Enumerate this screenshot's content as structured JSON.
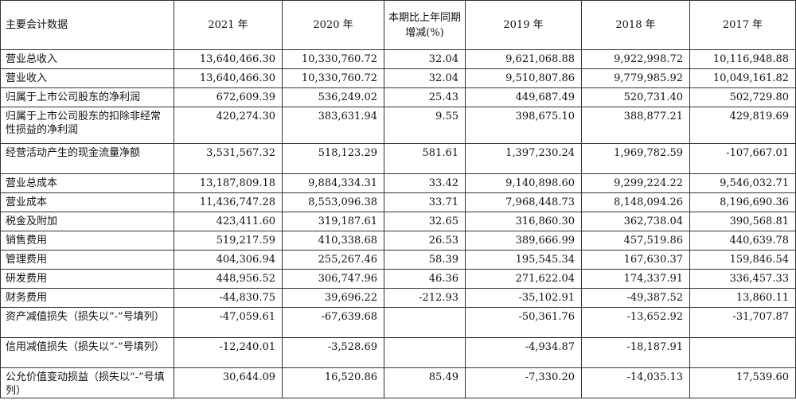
{
  "table": {
    "headers": [
      "主要会计数据",
      "2021 年",
      "2020 年",
      "本期比上年同期增减(%)",
      "2019 年",
      "2018 年",
      "2017 年"
    ],
    "rows": [
      {
        "label": "营业总收入",
        "values": [
          "13,640,466.30",
          "10,330,760.72",
          "32.04",
          "9,621,068.88",
          "9,922,998.72",
          "10,116,948.88"
        ]
      },
      {
        "label": "营业收入",
        "values": [
          "13,640,466.30",
          "10,330,760.72",
          "32.04",
          "9,510,807.86",
          "9,779,985.92",
          "10,049,161.82"
        ]
      },
      {
        "label": "归属于上市公司股东的净利润",
        "values": [
          "672,609.39",
          "536,249.02",
          "25.43",
          "449,687.49",
          "520,731.40",
          "502,729.80"
        ]
      },
      {
        "label": "归属于上市公司股东的扣除非经常性损益的净利润",
        "values": [
          "420,274.30",
          "383,631.94",
          "9.55",
          "398,675.10",
          "388,877.21",
          "429,819.69"
        ]
      },
      {
        "label": "经营活动产生的现金流量净额",
        "values": [
          "3,531,567.32",
          "518,123.29",
          "581.61",
          "1,397,230.24",
          "1,969,782.59",
          "-107,667.01"
        ]
      },
      {
        "label": "营业总成本",
        "values": [
          "13,187,809.18",
          "9,884,334.31",
          "33.42",
          "9,140,898.60",
          "9,299,224.22",
          "9,546,032.71"
        ]
      },
      {
        "label": "营业成本",
        "values": [
          "11,436,747.28",
          "8,553,096.38",
          "33.71",
          "7,968,448.73",
          "8,148,094.26",
          "8,196,690.36"
        ]
      },
      {
        "label": "税金及附加",
        "values": [
          "423,411.60",
          "319,187.61",
          "32.65",
          "316,860.30",
          "362,738.04",
          "390,568.81"
        ]
      },
      {
        "label": "销售费用",
        "values": [
          "519,217.59",
          "410,338.68",
          "26.53",
          "389,666.99",
          "457,519.86",
          "440,639.78"
        ]
      },
      {
        "label": "管理费用",
        "values": [
          "404,306.94",
          "255,267.46",
          "58.39",
          "195,545.34",
          "167,630.37",
          "159,846.54"
        ]
      },
      {
        "label": "研发费用",
        "values": [
          "448,956.52",
          "306,747.96",
          "46.36",
          "271,622.04",
          "174,337.91",
          "336,457.33"
        ]
      },
      {
        "label": "财务费用",
        "values": [
          "-44,830.75",
          "39,696.22",
          "-212.93",
          "-35,102.91",
          "-49,387.52",
          "13,860.11"
        ]
      },
      {
        "label": "资产减值损失（损失以“-”号填列）",
        "values": [
          "-47,059.61",
          "-67,639.68",
          "",
          "-50,361.76",
          "-13,652.92",
          "-31,707.87"
        ]
      },
      {
        "label": "信用减值损失（损失以“-”号填列）",
        "values": [
          "-12,240.01",
          "-3,528.69",
          "",
          "-4,934.87",
          "-18,187.91",
          ""
        ]
      },
      {
        "label": "公允价值变动损益（损失以“-”号填列）",
        "values": [
          "30,644.09",
          "16,520.86",
          "85.49",
          "-7,330.20",
          "-14,035.13",
          "17,539.60"
        ]
      }
    ]
  }
}
